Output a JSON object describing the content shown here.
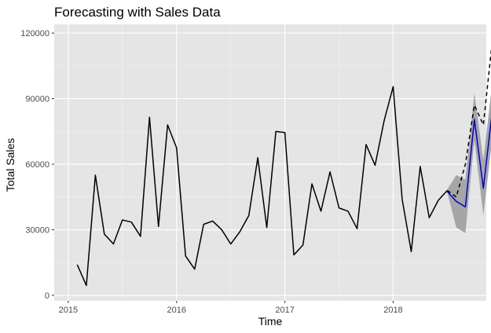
{
  "chart_data": {
    "type": "line",
    "title": "Forecasting with Sales Data",
    "xlabel": "Time",
    "ylabel": "Total Sales",
    "xlim": [
      2014.87,
      2018.86
    ],
    "ylim": [
      -2500,
      124000
    ],
    "x_ticks": [
      2015,
      2016,
      2017,
      2018
    ],
    "x_tick_labels": [
      "2015",
      "2016",
      "2017",
      "2018"
    ],
    "y_ticks": [
      0,
      30000,
      60000,
      90000,
      120000
    ],
    "y_tick_labels": [
      "0",
      "30000",
      "60000",
      "90000",
      "120000"
    ],
    "grid": true,
    "colors": {
      "panel": "#e5e5e5",
      "grid_major": "#ffffff",
      "grid_minor": "#f2f2f2",
      "actual": "#000000",
      "forecast": "#0000cc",
      "band": "#a6a6a6"
    },
    "series": [
      {
        "style": "solid",
        "color": "#000000",
        "points": [
          [
            2015.083,
            14000
          ],
          [
            2015.167,
            4500
          ],
          [
            2015.25,
            55000
          ],
          [
            2015.333,
            28000
          ],
          [
            2015.417,
            23500
          ],
          [
            2015.5,
            34500
          ],
          [
            2015.583,
            33500
          ],
          [
            2015.667,
            27000
          ],
          [
            2015.75,
            81500
          ],
          [
            2015.833,
            31500
          ],
          [
            2015.917,
            78000
          ],
          [
            2016.0,
            67500
          ],
          [
            2016.083,
            18000
          ],
          [
            2016.167,
            12000
          ],
          [
            2016.25,
            32500
          ],
          [
            2016.333,
            34000
          ],
          [
            2016.417,
            30000
          ],
          [
            2016.5,
            23500
          ],
          [
            2016.583,
            29000
          ],
          [
            2016.667,
            36500
          ],
          [
            2016.75,
            63000
          ],
          [
            2016.833,
            31000
          ],
          [
            2016.917,
            75000
          ],
          [
            2017.0,
            74500
          ],
          [
            2017.083,
            18500
          ],
          [
            2017.167,
            23000
          ],
          [
            2017.25,
            51000
          ],
          [
            2017.333,
            38500
          ],
          [
            2017.417,
            56500
          ],
          [
            2017.5,
            40000
          ],
          [
            2017.583,
            38500
          ],
          [
            2017.667,
            30500
          ],
          [
            2017.75,
            69000
          ],
          [
            2017.833,
            59500
          ],
          [
            2017.917,
            80000
          ],
          [
            2018.0,
            95500
          ],
          [
            2018.083,
            44000
          ],
          [
            2018.167,
            20000
          ],
          [
            2018.25,
            59000
          ],
          [
            2018.333,
            35500
          ],
          [
            2018.417,
            43500
          ],
          [
            2018.5,
            48000
          ]
        ]
      },
      {
        "style": "dashed",
        "color": "#000000",
        "points": [
          [
            2018.5,
            48000
          ],
          [
            2018.583,
            45000
          ],
          [
            2018.667,
            60000
          ],
          [
            2018.75,
            87000
          ],
          [
            2018.833,
            78000
          ],
          [
            2018.917,
            117000
          ],
          [
            2019.0,
            83000
          ]
        ]
      },
      {
        "style": "solid",
        "color": "#0000cc",
        "points": [
          [
            2018.5,
            47500
          ],
          [
            2018.583,
            43000
          ],
          [
            2018.667,
            40500
          ],
          [
            2018.75,
            80500
          ],
          [
            2018.833,
            49000
          ],
          [
            2018.917,
            85000
          ],
          [
            2019.0,
            87000
          ]
        ]
      }
    ],
    "band": {
      "x": [
        2018.5,
        2018.583,
        2018.667,
        2018.75,
        2018.833,
        2018.917,
        2019.0
      ],
      "lower": [
        47000,
        31000,
        28500,
        71000,
        36500,
        72500,
        74000
      ],
      "upper": [
        48500,
        55000,
        53000,
        92500,
        62000,
        98000,
        100500
      ]
    }
  }
}
